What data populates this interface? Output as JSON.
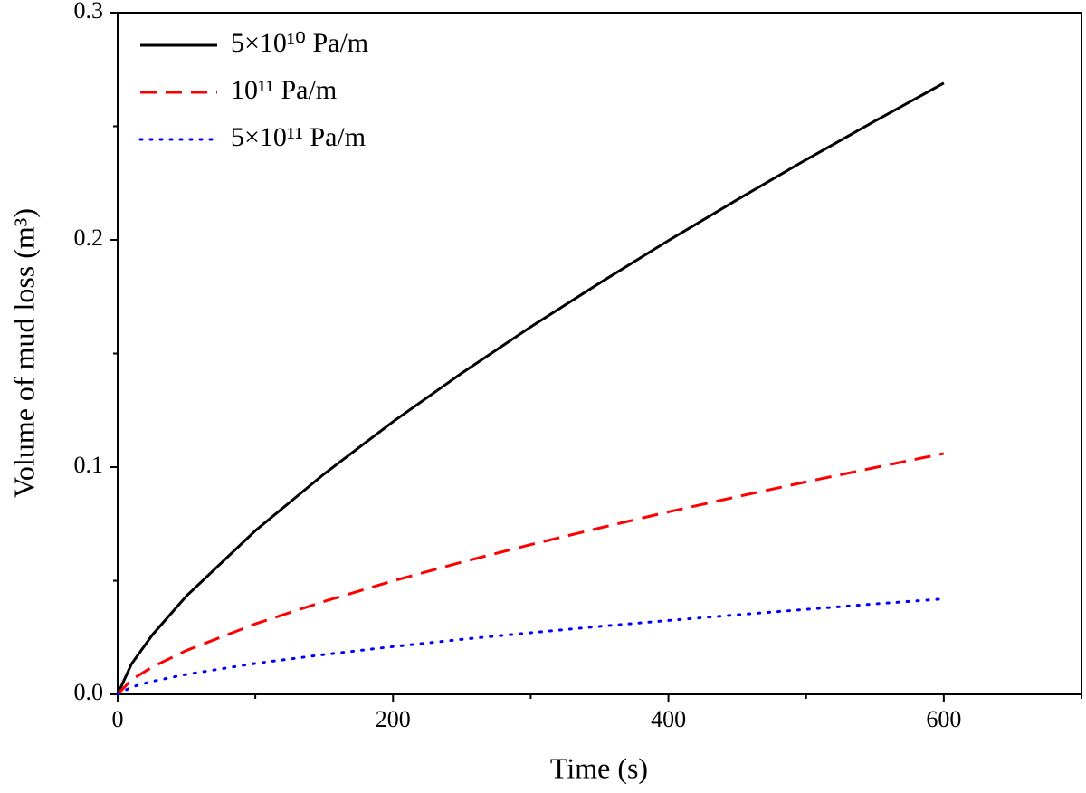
{
  "chart_data": {
    "type": "line",
    "x_label": "Time (s)",
    "y_label": "Volume of mud loss (m³)",
    "x": [
      0,
      10,
      25,
      50,
      100,
      150,
      200,
      250,
      300,
      350,
      400,
      450,
      500,
      550,
      600
    ],
    "series": [
      {
        "name": "5×10¹⁰ Pa/m",
        "color": "#000000",
        "dash": "solid",
        "values": [
          0,
          0.0133,
          0.026,
          0.0433,
          0.072,
          0.097,
          0.12,
          0.1414,
          0.1617,
          0.181,
          0.1997,
          0.2177,
          0.2353,
          0.2523,
          0.269
        ]
      },
      {
        "name": "10¹¹ Pa/m",
        "color": "#ff0000",
        "dash": "dashed",
        "values": [
          0,
          0.0064,
          0.012,
          0.0193,
          0.031,
          0.0409,
          0.0499,
          0.0582,
          0.0659,
          0.0732,
          0.0803,
          0.087,
          0.0935,
          0.0998,
          0.106
        ]
      },
      {
        "name": "5×10¹¹ Pa/m",
        "color": "#0000ff",
        "dash": "dotted",
        "values": [
          0,
          0.0032,
          0.0057,
          0.0088,
          0.0136,
          0.0175,
          0.021,
          0.0242,
          0.0271,
          0.0299,
          0.0325,
          0.035,
          0.0374,
          0.0398,
          0.042
        ]
      }
    ],
    "xlim": [
      0,
      700
    ],
    "xticks": [
      0,
      200,
      400,
      600
    ],
    "xminorticks": [
      100,
      300,
      500,
      700
    ],
    "ylim": [
      0,
      0.3
    ],
    "yticks": [
      {
        "value": 0,
        "label": "0.0"
      },
      0.1,
      0.2,
      0.3
    ],
    "yminorticks": [
      0.05,
      0.15,
      0.25
    ],
    "grid": false,
    "legend": "upper left"
  }
}
